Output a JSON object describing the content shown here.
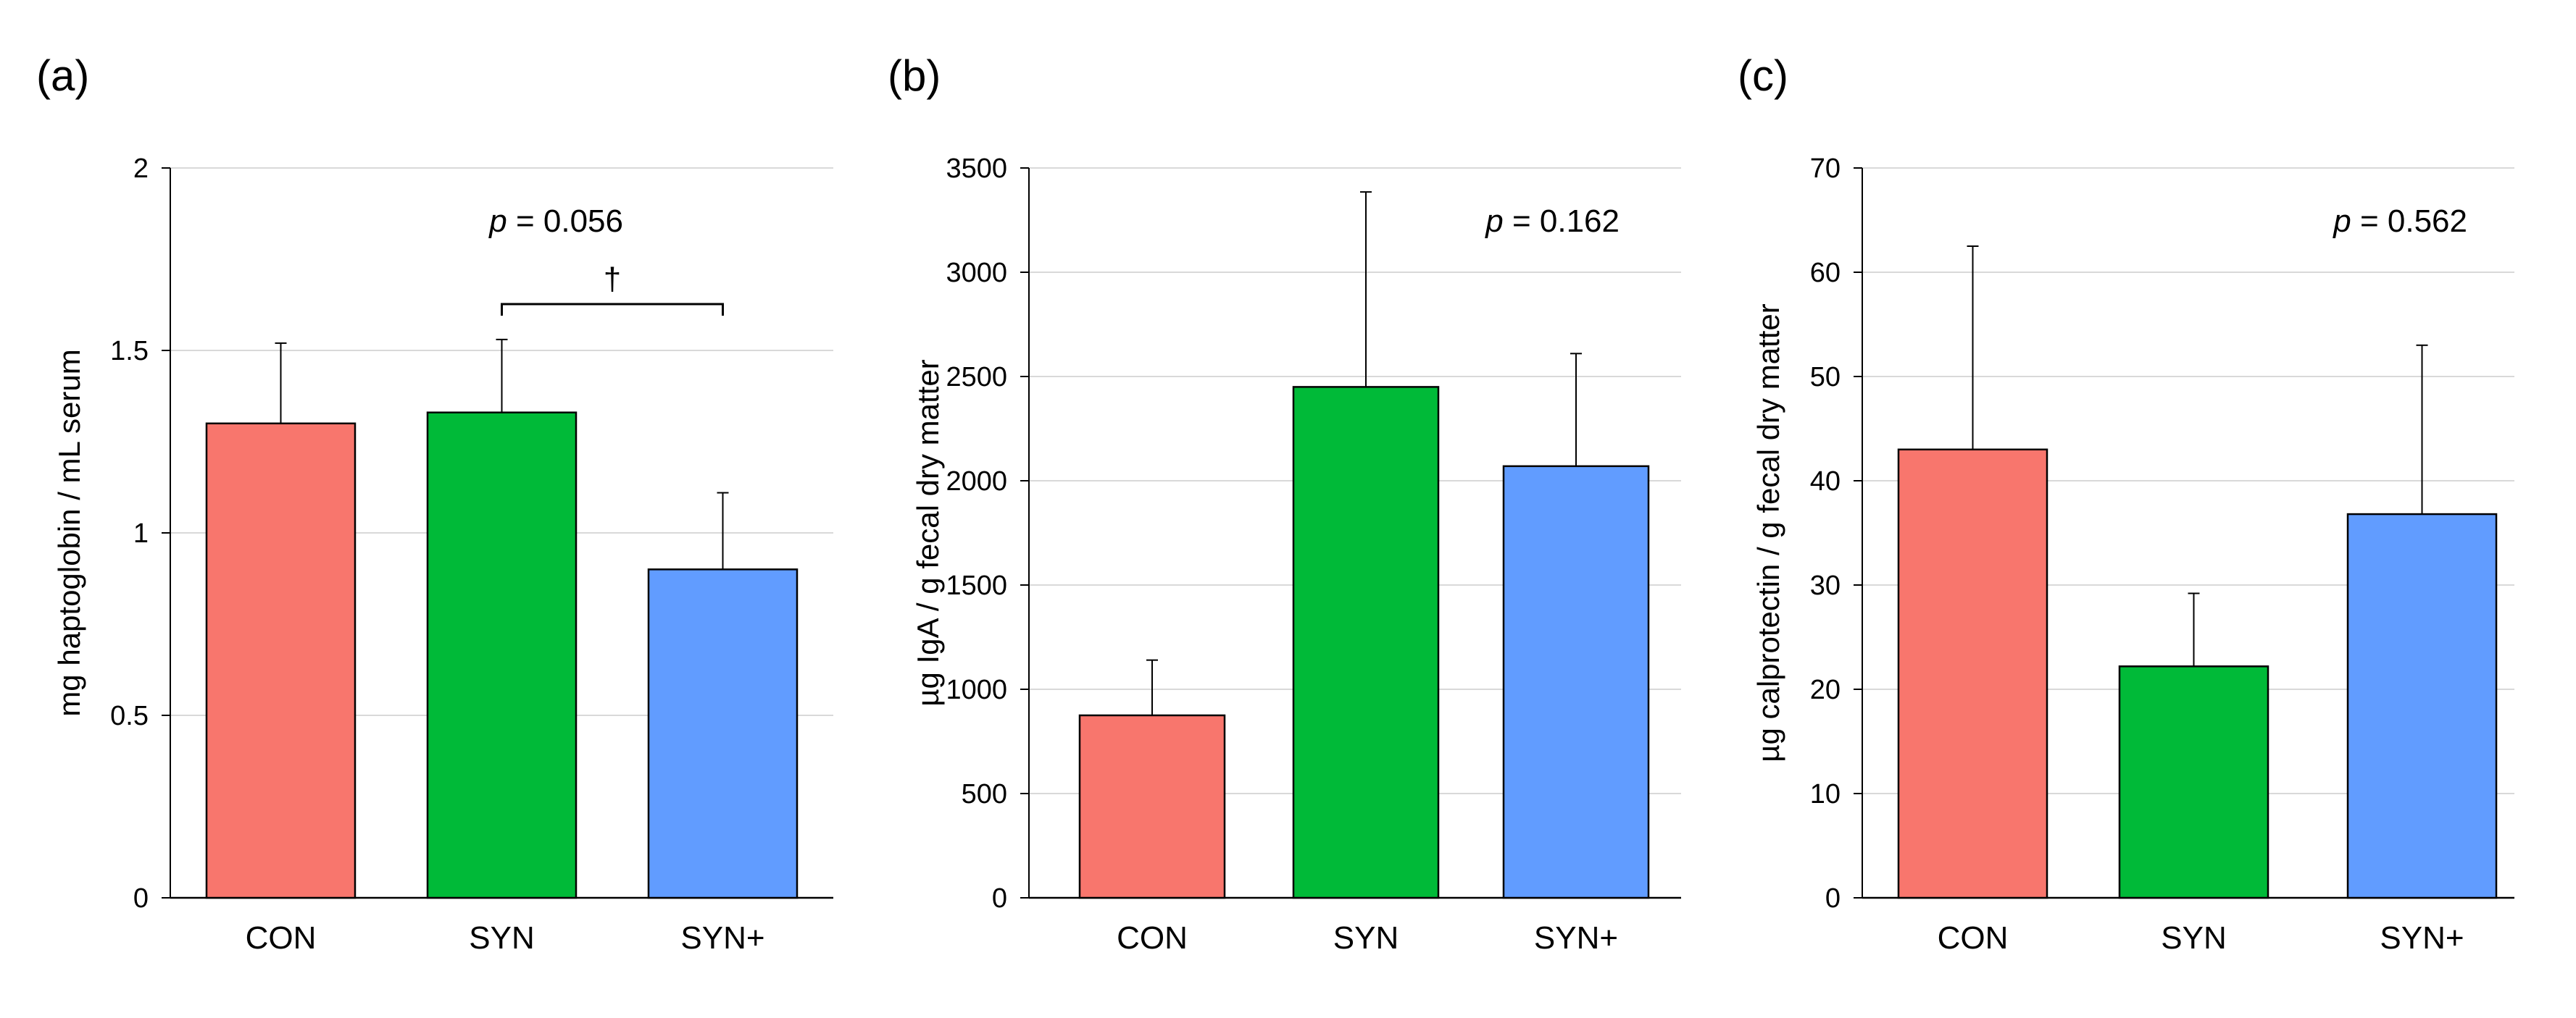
{
  "chart_data": [
    {
      "type": "bar",
      "panel_label": "(a)",
      "categories": [
        "CON",
        "SYN",
        "SYN+"
      ],
      "values": [
        1.3,
        1.33,
        0.9
      ],
      "errors": [
        0.22,
        0.2,
        0.21
      ],
      "colors": [
        "#F8766D",
        "#00BA38",
        "#619CFF"
      ],
      "ylabel": "mg haptoglobin / mL serum",
      "ylim": [
        0,
        2
      ],
      "yticks": [
        "0",
        "0.5",
        "1",
        "1.5",
        "2"
      ],
      "annotation": {
        "p_label": "p",
        "p_text": " = 0.056",
        "symbol": "†",
        "bracket": [
          "SYN",
          "SYN+"
        ]
      }
    },
    {
      "type": "bar",
      "panel_label": "(b)",
      "categories": [
        "CON",
        "SYN",
        "SYN+"
      ],
      "values": [
        875,
        2450,
        2070
      ],
      "errors": [
        265,
        935,
        540
      ],
      "colors": [
        "#F8766D",
        "#00BA38",
        "#619CFF"
      ],
      "ylabel": "µg IgA / g fecal dry matter",
      "ylim": [
        0,
        3500
      ],
      "yticks": [
        "0",
        "500",
        "1000",
        "1500",
        "2000",
        "2500",
        "3000",
        "3500"
      ],
      "annotation": {
        "p_label": "p",
        "p_text": " = 0.162"
      }
    },
    {
      "type": "bar",
      "panel_label": "(c)",
      "categories": [
        "CON",
        "SYN",
        "SYN+"
      ],
      "values": [
        43,
        22.2,
        36.8
      ],
      "errors": [
        19.5,
        7,
        16.2
      ],
      "colors": [
        "#F8766D",
        "#00BA38",
        "#619CFF"
      ],
      "ylabel": "µg calprotectin / g fecal dry matter",
      "ylim": [
        0,
        70
      ],
      "yticks": [
        "0",
        "10",
        "20",
        "30",
        "40",
        "50",
        "60",
        "70"
      ],
      "annotation": {
        "p_label": "p",
        "p_text": " = 0.562"
      }
    }
  ]
}
